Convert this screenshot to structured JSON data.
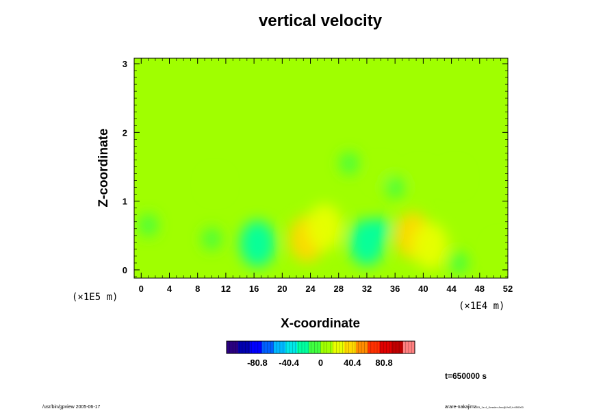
{
  "chart_data": {
    "type": "heatmap",
    "title": "vertical velocity",
    "xlabel": "X-coordinate",
    "ylabel": "Z-coordinate",
    "x_scale_label": "(×1E4 m)",
    "y_scale_label": "(×1E5 m)",
    "x_ticks": [
      "0",
      "4",
      "8",
      "12",
      "16",
      "20",
      "24",
      "28",
      "32",
      "36",
      "40",
      "44",
      "48",
      "52"
    ],
    "y_ticks": [
      "0",
      "1",
      "2",
      "3"
    ],
    "xlim": [
      -1,
      52
    ],
    "ylim": [
      -0.12,
      3.08
    ],
    "colorbar": {
      "ticks": [
        "-80.8",
        "-40.4",
        "0",
        "40.4",
        "80.8"
      ],
      "tick_values": [
        -80.8,
        -40.4,
        0,
        40.4,
        80.8
      ],
      "range": [
        -120,
        120
      ],
      "colors": [
        "#2a0080",
        "#0000b0",
        "#0000ff",
        "#0060ff",
        "#00b8ff",
        "#00e8e8",
        "#00ffa0",
        "#40ff40",
        "#a0ff00",
        "#e8ff00",
        "#ffd800",
        "#ff8c00",
        "#ff3000",
        "#e00000",
        "#c00000",
        "#ff8080"
      ]
    },
    "features": [
      {
        "x": 23.5,
        "z": 0.45,
        "value": 32
      },
      {
        "x": 26.0,
        "z": 0.62,
        "value": 22
      },
      {
        "x": 38.5,
        "z": 0.5,
        "value": 36
      },
      {
        "x": 41.0,
        "z": 0.35,
        "value": 20
      },
      {
        "x": 16.5,
        "z": 0.38,
        "value": -24
      },
      {
        "x": 32.0,
        "z": 0.4,
        "value": -30
      },
      {
        "x": 34.0,
        "z": 0.6,
        "value": -16
      },
      {
        "x": 1.0,
        "z": 0.65,
        "value": -14
      },
      {
        "x": 10.0,
        "z": 0.45,
        "value": -10
      },
      {
        "x": 44.5,
        "z": 1.35,
        "value": 14
      },
      {
        "x": 39.5,
        "z": 1.35,
        "value": 12
      },
      {
        "x": 36.0,
        "z": 1.2,
        "value": -14
      },
      {
        "x": 34.0,
        "z": 1.4,
        "value": 10
      },
      {
        "x": 10.5,
        "z": 1.25,
        "value": 10
      },
      {
        "x": 29.5,
        "z": 1.55,
        "value": -8
      },
      {
        "x": 51.0,
        "z": 0.3,
        "value": 14
      },
      {
        "x": 45.0,
        "z": 0.1,
        "value": -10
      }
    ],
    "time_label": "t=650000 s"
  },
  "footer": {
    "left": "/usr/bin/gpview 2005-06-17",
    "right_main": "arare-nakajima",
    "right_small": "03_1e-4_Kessler-Anc@Vel2,t=650000"
  }
}
